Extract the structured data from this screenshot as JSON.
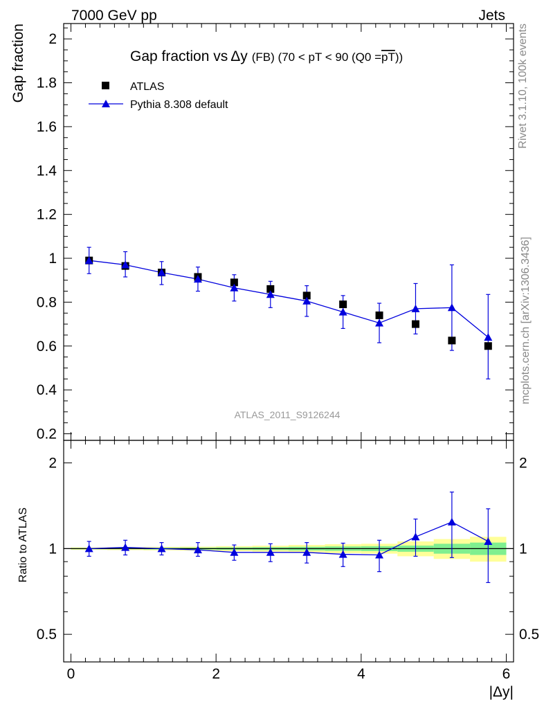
{
  "header": {
    "left": "7000 GeV pp",
    "right": "Jets"
  },
  "title": {
    "main": "Gap fraction vs",
    "delta_y": "Δy",
    "detail": "(FB) (70 < pT <  90 (Q0 =",
    "pt_bar": "pT",
    "close": "))"
  },
  "side_text": {
    "rivet": "Rivet 3.1.10,  100k events",
    "mcplots": "mcplots.cern.ch [arXiv:1306.3436]"
  },
  "analysis_label": "ATLAS_2011_S9126244",
  "chart_data": [
    {
      "type": "scatter",
      "panel": "main",
      "ylabel": "Gap fraction",
      "xlim": [
        -0.1,
        6.1
      ],
      "ylim": [
        0.17,
        2.07
      ],
      "yticks": [
        "0.2",
        "0.4",
        "0.6",
        "0.8",
        "1",
        "1.2",
        "1.4",
        "1.6",
        "1.8",
        "2"
      ],
      "legend": [
        "ATLAS",
        "Pythia 8.308 default"
      ],
      "legend_placement": "top-left",
      "series": [
        {
          "name": "ATLAS",
          "marker": "square",
          "color": "#000000",
          "x": [
            0.25,
            0.75,
            1.25,
            1.75,
            2.25,
            2.75,
            3.25,
            3.75,
            4.25,
            4.75,
            5.25,
            5.75
          ],
          "y": [
            0.99,
            0.965,
            0.935,
            0.915,
            0.89,
            0.86,
            0.83,
            0.79,
            0.74,
            0.7,
            0.625,
            0.6
          ]
        },
        {
          "name": "Pythia 8.308 default",
          "marker": "triangle",
          "color": "#0000dd",
          "x": [
            0.25,
            0.75,
            1.25,
            1.75,
            2.25,
            2.75,
            3.25,
            3.75,
            4.25,
            4.75,
            5.25,
            5.75
          ],
          "y": [
            0.99,
            0.97,
            0.935,
            0.905,
            0.865,
            0.835,
            0.805,
            0.755,
            0.705,
            0.77,
            0.775,
            0.64
          ],
          "err_low": [
            0.06,
            0.055,
            0.055,
            0.055,
            0.06,
            0.06,
            0.07,
            0.075,
            0.09,
            0.115,
            0.195,
            0.19
          ],
          "err_high": [
            0.06,
            0.06,
            0.05,
            0.055,
            0.06,
            0.06,
            0.07,
            0.075,
            0.09,
            0.115,
            0.195,
            0.195
          ]
        }
      ]
    },
    {
      "type": "line",
      "panel": "ratio",
      "ylabel": "Ratio to ATLAS",
      "xlabel": "|Δy|",
      "xlim": [
        -0.1,
        6.1
      ],
      "ylim": [
        0.4,
        2.4
      ],
      "yticks": [
        "0.5",
        "1",
        "2"
      ],
      "xticks": [
        "0",
        "2",
        "4",
        "6"
      ],
      "band_inner_color": "#7fef8f",
      "band_outer_color": "#ffff99",
      "bands": {
        "x_edges": [
          0,
          0.5,
          1,
          1.5,
          2,
          2.5,
          3,
          3.5,
          4,
          4.5,
          5,
          5.5,
          6
        ],
        "inner": [
          0.005,
          0.005,
          0.007,
          0.008,
          0.01,
          0.012,
          0.015,
          0.018,
          0.02,
          0.025,
          0.04,
          0.05
        ],
        "outer": [
          0.01,
          0.012,
          0.014,
          0.016,
          0.02,
          0.024,
          0.03,
          0.036,
          0.04,
          0.06,
          0.08,
          0.1
        ]
      },
      "series": [
        {
          "name": "Pythia 8.308 default",
          "color": "#0000dd",
          "x": [
            0.25,
            0.75,
            1.25,
            1.75,
            2.25,
            2.75,
            3.25,
            3.75,
            4.25,
            4.75,
            5.25,
            5.75
          ],
          "y": [
            1.0,
            1.01,
            1.0,
            0.99,
            0.97,
            0.97,
            0.97,
            0.955,
            0.95,
            1.1,
            1.24,
            1.06
          ],
          "err_low": [
            0.06,
            0.06,
            0.05,
            0.05,
            0.06,
            0.07,
            0.08,
            0.09,
            0.12,
            0.16,
            0.31,
            0.3
          ],
          "err_high": [
            0.06,
            0.06,
            0.05,
            0.06,
            0.06,
            0.07,
            0.08,
            0.09,
            0.12,
            0.17,
            0.34,
            0.32
          ]
        }
      ]
    }
  ]
}
